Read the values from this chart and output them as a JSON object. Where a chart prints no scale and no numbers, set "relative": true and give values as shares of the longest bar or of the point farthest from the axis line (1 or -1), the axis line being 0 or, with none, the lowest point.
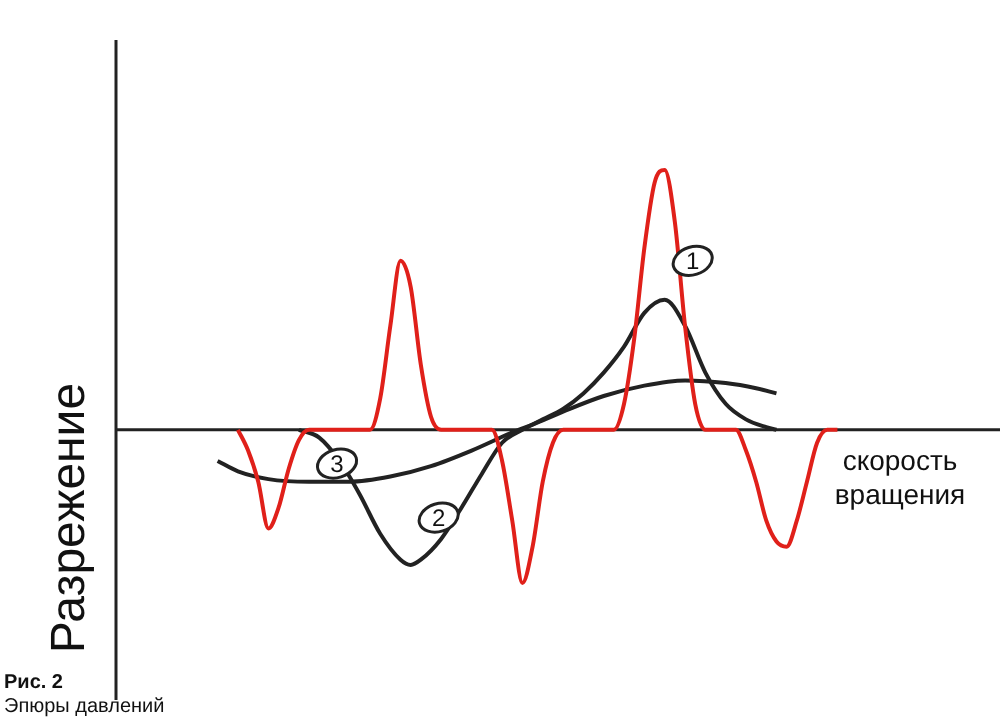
{
  "chart_data": {
    "type": "line",
    "relative": true,
    "ylabel": "Разрежение",
    "xlabel": "скорость вращения",
    "annotations": [
      "Рис. 2",
      "Эпюры давлений"
    ],
    "categories": [
      null,
      null,
      null,
      null,
      null,
      null,
      null,
      null,
      null,
      null,
      null,
      null,
      null,
      null,
      null,
      null,
      null,
      null,
      null,
      null,
      null,
      null,
      null,
      null,
      null,
      null,
      null,
      null,
      null,
      null,
      null,
      null,
      null,
      null,
      null,
      null,
      null,
      null,
      null,
      null,
      null,
      null,
      null,
      null,
      null,
      null,
      null,
      null,
      null,
      null,
      null,
      null,
      null,
      null,
      null,
      null,
      null,
      null,
      null,
      null,
      null,
      null,
      null,
      null,
      null,
      null,
      null,
      null,
      null,
      null,
      null,
      null,
      null,
      null,
      null,
      null,
      null,
      null,
      null,
      null,
      null,
      null,
      null,
      null,
      null,
      null,
      null,
      null
    ],
    "legend": false,
    "marker": "none",
    "line_style": "solid",
    "series": [
      {
        "name": "1",
        "color": "#e0201a",
        "values": [
          null,
          null,
          null,
          null,
          null,
          null,
          null,
          null,
          null,
          null,
          null,
          null,
          0,
          -0.08,
          -0.2,
          -0.38,
          -0.3,
          -0.15,
          -0.04,
          0,
          null,
          null,
          null,
          null,
          null,
          0,
          0.12,
          0.4,
          0.65,
          0.55,
          0.25,
          0.05,
          0,
          null,
          null,
          null,
          null,
          0,
          -0.12,
          -0.35,
          -0.59,
          -0.45,
          -0.2,
          -0.05,
          0,
          null,
          null,
          null,
          null,
          0,
          0.1,
          0.35,
          0.7,
          0.95,
          1,
          0.8,
          0.4,
          0.1,
          0,
          null,
          null,
          0,
          -0.08,
          -0.2,
          -0.35,
          -0.43,
          -0.45,
          -0.35,
          -0.2,
          -0.05,
          0,
          0,
          null,
          null,
          null,
          null,
          null,
          null,
          null,
          null,
          null,
          null,
          null,
          null,
          null,
          null,
          null,
          null
        ]
      },
      {
        "name": "2",
        "color": "#222222",
        "values": [
          null,
          null,
          null,
          null,
          null,
          null,
          null,
          null,
          null,
          null,
          null,
          null,
          null,
          null,
          null,
          null,
          null,
          null,
          0,
          null,
          -0.03,
          null,
          -0.12,
          null,
          -0.25,
          null,
          -0.4,
          null,
          -0.5,
          -0.52,
          -0.5,
          null,
          -0.42,
          null,
          -0.3,
          null,
          -0.17,
          null,
          -0.05,
          null,
          0,
          null,
          0.04,
          null,
          0.08,
          null,
          0.14,
          null,
          0.22,
          null,
          0.32,
          null,
          0.45,
          null,
          0.5,
          null,
          0.4,
          null,
          0.22,
          null,
          0.1,
          null,
          0.04,
          null,
          0.01,
          0,
          null,
          null,
          null,
          null,
          null,
          null,
          null,
          null,
          null,
          null,
          null,
          null,
          null,
          null,
          null,
          null,
          null,
          null,
          null,
          null,
          null,
          null
        ]
      },
      {
        "name": "3",
        "color": "#222222",
        "values": [
          null,
          null,
          null,
          null,
          null,
          null,
          null,
          null,
          null,
          null,
          -0.12,
          null,
          -0.16,
          null,
          null,
          -0.19,
          null,
          null,
          null,
          -0.2,
          null,
          null,
          null,
          -0.2,
          null,
          null,
          null,
          -0.18,
          null,
          null,
          null,
          -0.14,
          null,
          null,
          null,
          -0.08,
          null,
          null,
          null,
          -0.01,
          null,
          0.02,
          null,
          null,
          0.07,
          null,
          null,
          null,
          0.13,
          null,
          null,
          null,
          0.17,
          null,
          null,
          null,
          0.19,
          null,
          null,
          null,
          0.18,
          null,
          null,
          0.16,
          null,
          0.14,
          null,
          null,
          null,
          null,
          null,
          null,
          null,
          null,
          null,
          null,
          null,
          null,
          null,
          null,
          null,
          null,
          null,
          null,
          null,
          null,
          null,
          null
        ]
      }
    ]
  }
}
